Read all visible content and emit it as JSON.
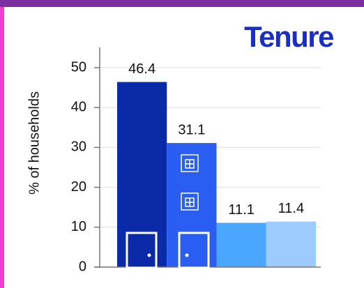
{
  "chart_data": {
    "type": "bar",
    "title": "Tenure",
    "y_label": "% of households",
    "categories": [
      null,
      null,
      null,
      null
    ],
    "values": [
      46.4,
      31.1,
      11.1,
      11.4
    ],
    "colors": [
      "#0a2aa8",
      "#2a5ef2",
      "#4aa6ff",
      "#9ccbff"
    ],
    "ylim": [
      0,
      55
    ],
    "yticks": [
      0,
      10,
      20,
      30,
      40,
      50
    ],
    "grid": true
  }
}
